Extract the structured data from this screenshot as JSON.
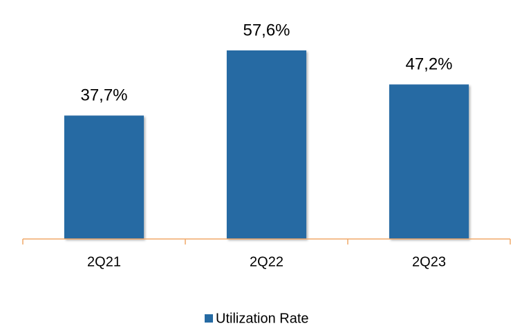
{
  "chart_data": {
    "type": "bar",
    "categories": [
      "2Q21",
      "2Q22",
      "2Q23"
    ],
    "series": [
      {
        "name": "Utilization Rate",
        "color": "#256aa3",
        "values": [
          37.7,
          57.6,
          47.2
        ],
        "value_labels": [
          "37,7%",
          "57,6%",
          "47,2%"
        ]
      }
    ],
    "ylim": [
      0,
      73
    ],
    "axis_color": "#f0a868",
    "legend": "bottom"
  }
}
